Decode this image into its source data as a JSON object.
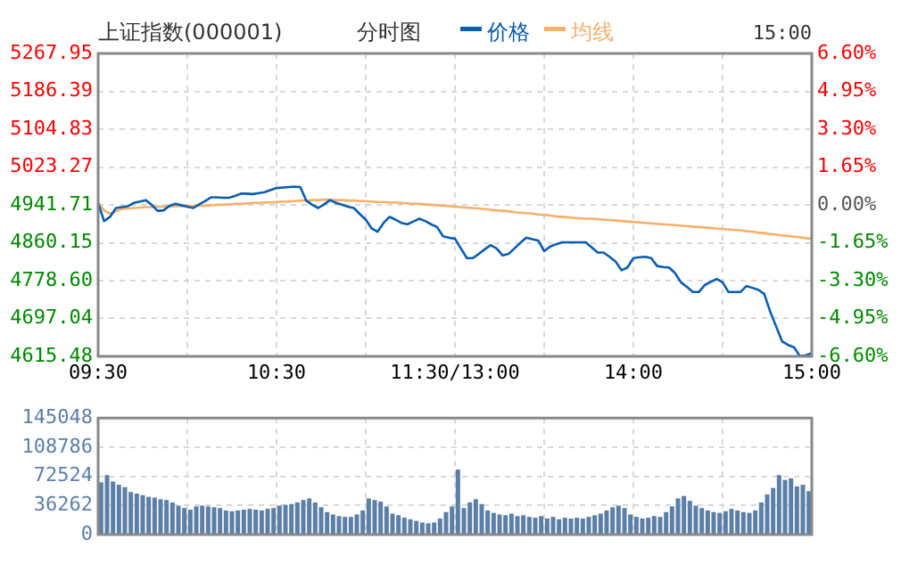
{
  "chart_data": [
    {
      "type": "line",
      "title": "上证指数(000001)",
      "subtitle": "分时图",
      "annotations": [
        "15:00"
      ],
      "legend": "top",
      "grid": true,
      "categories": [
        "09:30",
        null,
        null,
        null,
        null,
        null,
        null,
        null,
        null,
        null,
        null,
        null,
        null,
        null,
        null,
        null,
        null,
        null,
        null,
        null,
        null,
        null,
        null,
        null,
        null,
        null,
        null,
        null,
        null,
        null,
        "10:30",
        null,
        null,
        null,
        null,
        null,
        null,
        null,
        null,
        null,
        null,
        null,
        null,
        null,
        null,
        null,
        null,
        null,
        null,
        null,
        null,
        null,
        null,
        null,
        null,
        null,
        null,
        null,
        null,
        null,
        "11:30/13:00",
        null,
        null,
        null,
        null,
        null,
        null,
        null,
        null,
        null,
        null,
        null,
        null,
        null,
        null,
        null,
        null,
        null,
        null,
        null,
        null,
        null,
        null,
        null,
        null,
        null,
        null,
        null,
        null,
        null,
        "14:00",
        null,
        null,
        null,
        null,
        null,
        null,
        null,
        null,
        null,
        null,
        null,
        null,
        null,
        null,
        null,
        null,
        null,
        null,
        null,
        null,
        null,
        null,
        null,
        null,
        null,
        null,
        null,
        null,
        null,
        "15:00"
      ],
      "ylim": [
        4615.48,
        5267.95
      ],
      "yticks": [
        5267.95,
        5186.39,
        5104.83,
        5023.27,
        4941.71,
        4860.15,
        {
          "value": 4778.6,
          "label": "4778.60"
        },
        4697.04,
        4615.48
      ],
      "y2lim": [
        -6.6,
        6.6
      ],
      "y2ticks": [
        {
          "value": 6.6,
          "label": "6.60%"
        },
        {
          "value": 4.95,
          "label": "4.95%"
        },
        {
          "value": 3.3,
          "label": "3.30%"
        },
        {
          "value": 1.65,
          "label": "1.65%"
        },
        {
          "value": 0,
          "label": "0.00%"
        },
        {
          "value": -1.65,
          "label": "-1.65%"
        },
        {
          "value": -3.3,
          "label": "-3.30%"
        },
        {
          "value": -4.95,
          "label": "-4.95%"
        },
        {
          "value": -6.6,
          "label": "-6.60%"
        }
      ],
      "series": [
        {
          "name": "价格",
          "color": "#0a5db0",
          "values": [
            4946,
            4907,
            4916,
            4935,
            4937,
            4939,
            4946,
            4949,
            4952,
            4942,
            4929,
            4930,
            4940,
            4944,
            4941,
            4938,
            4935,
            4943,
            4950,
            4958,
            4958,
            4957,
            4957,
            4961,
            4966,
            4966,
            4965,
            4967,
            4969,
            4974,
            4978,
            4979,
            4980,
            4981,
            4980,
            4951,
            4942,
            4935,
            4943,
            4952,
            4946,
            4942,
            4938,
            4935,
            4922,
            4910,
            4891,
            4884,
            4903,
            4916,
            4910,
            4903,
            4900,
            4906,
            4912,
            4907,
            4900,
            4894,
            4874,
            4871,
            4869,
            4848,
            4827,
            4827,
            4836,
            4846,
            4855,
            4848,
            4833,
            4836,
            4848,
            4860,
            4871,
            4868,
            4865,
            4842,
            4852,
            4857,
            4861,
            4861,
            4861,
            4861,
            4861,
            4850,
            4839,
            4839,
            4830,
            4820,
            4801,
            4807,
            4827,
            4829,
            4830,
            4827,
            4810,
            4808,
            4807,
            4795,
            4775,
            4765,
            4754,
            4754,
            4769,
            4776,
            4782,
            4775,
            4754,
            4754,
            4754,
            4767,
            4763,
            4759,
            4750,
            4712,
            4680,
            4648,
            4640,
            4635,
            4616,
            4618,
            4622
          ]
        },
        {
          "name": "均线",
          "color": "#f5b06a",
          "values": [
            4946,
            4930,
            4923,
            4928,
            4933,
            4934,
            4935,
            4936,
            4937,
            4937,
            4938,
            4938,
            4938,
            4939,
            4939,
            4939,
            4939,
            4940,
            4940,
            4941,
            4942,
            4942,
            4943,
            4944,
            4944,
            4945,
            4946,
            4946,
            4947,
            4947,
            4948,
            4949,
            4949,
            4950,
            4951,
            4951,
            4952,
            4952,
            4953,
            4953,
            4952,
            4952,
            4951,
            4951,
            4950,
            4950,
            4949,
            4948,
            4948,
            4947,
            4947,
            4946,
            4945,
            4944,
            4944,
            4943,
            4942,
            4941,
            4940,
            4939,
            4938,
            4937,
            4936,
            4935,
            4934,
            4933,
            4931,
            4930,
            4929,
            4928,
            4926,
            4925,
            4924,
            4923,
            4921,
            4920,
            4919,
            4917,
            4916,
            4915,
            4914,
            4913,
            4912,
            4912,
            4911,
            4910,
            4909,
            4908,
            4907,
            4906,
            4905,
            4904,
            4903,
            4902,
            4901,
            4900,
            4899,
            4898,
            4897,
            4896,
            4895,
            4894,
            4893,
            4892,
            4891,
            4890,
            4889,
            4888,
            4887,
            4885,
            4884,
            4882,
            4881,
            4879,
            4878,
            4876,
            4875,
            4873,
            4872,
            4870,
            4869
          ]
        }
      ]
    },
    {
      "type": "bar",
      "color": "#5b7fa6",
      "grid": true,
      "tick_labels": "y",
      "categories": [
        null,
        null,
        null,
        null,
        null,
        null,
        null,
        null,
        null,
        null,
        null,
        null,
        null,
        null,
        null,
        null,
        null,
        null,
        null,
        null,
        null,
        null,
        null,
        null,
        null,
        null,
        null,
        null,
        null,
        null,
        null,
        null,
        null,
        null,
        null,
        null,
        null,
        null,
        null,
        null,
        null,
        null,
        null,
        null,
        null,
        null,
        null,
        null,
        null,
        null,
        null,
        null,
        null,
        null,
        null,
        null,
        null,
        null,
        null,
        null,
        null,
        null,
        null,
        null,
        null,
        null,
        null,
        null,
        null,
        null,
        null,
        null,
        null,
        null,
        null,
        null,
        null,
        null,
        null,
        null,
        null,
        null,
        null,
        null,
        null,
        null,
        null,
        null,
        null,
        null,
        null,
        null,
        null,
        null,
        null,
        null,
        null,
        null,
        null,
        null,
        null,
        null,
        null,
        null,
        null,
        null,
        null,
        null,
        null,
        null,
        null,
        null,
        null,
        null,
        null,
        null,
        null,
        null,
        null,
        null
      ],
      "ylim": [
        0,
        145048
      ],
      "yticks": [
        0,
        36262,
        72524,
        108786,
        145048
      ],
      "values": [
        65000,
        74000,
        66000,
        62000,
        59000,
        53000,
        51000,
        49000,
        47000,
        46000,
        44000,
        43000,
        40000,
        36000,
        33000,
        31000,
        35000,
        36000,
        35000,
        34000,
        33000,
        30000,
        29000,
        30000,
        31000,
        32000,
        31000,
        30000,
        32000,
        33000,
        36000,
        37000,
        38000,
        40000,
        43000,
        45000,
        40000,
        34000,
        28000,
        25000,
        23000,
        22000,
        22000,
        25000,
        30000,
        45000,
        43000,
        41000,
        35000,
        26000,
        24000,
        21000,
        19000,
        17000,
        15000,
        14000,
        15000,
        20000,
        28000,
        35000,
        81000,
        33000,
        40000,
        44000,
        38000,
        30000,
        27000,
        25000,
        24000,
        26000,
        23000,
        24000,
        22000,
        21000,
        23000,
        20000,
        22000,
        19000,
        21000,
        20000,
        21000,
        20000,
        22000,
        24000,
        26000,
        30000,
        34000,
        36000,
        33000,
        25000,
        22000,
        20000,
        21000,
        23000,
        22000,
        28000,
        35000,
        45000,
        48000,
        42000,
        36000,
        33000,
        30000,
        28000,
        27000,
        29000,
        32000,
        30000,
        28000,
        27000,
        30000,
        40000,
        50000,
        58000,
        74000,
        68000,
        70000,
        60000,
        62000,
        54000
      ]
    }
  ]
}
